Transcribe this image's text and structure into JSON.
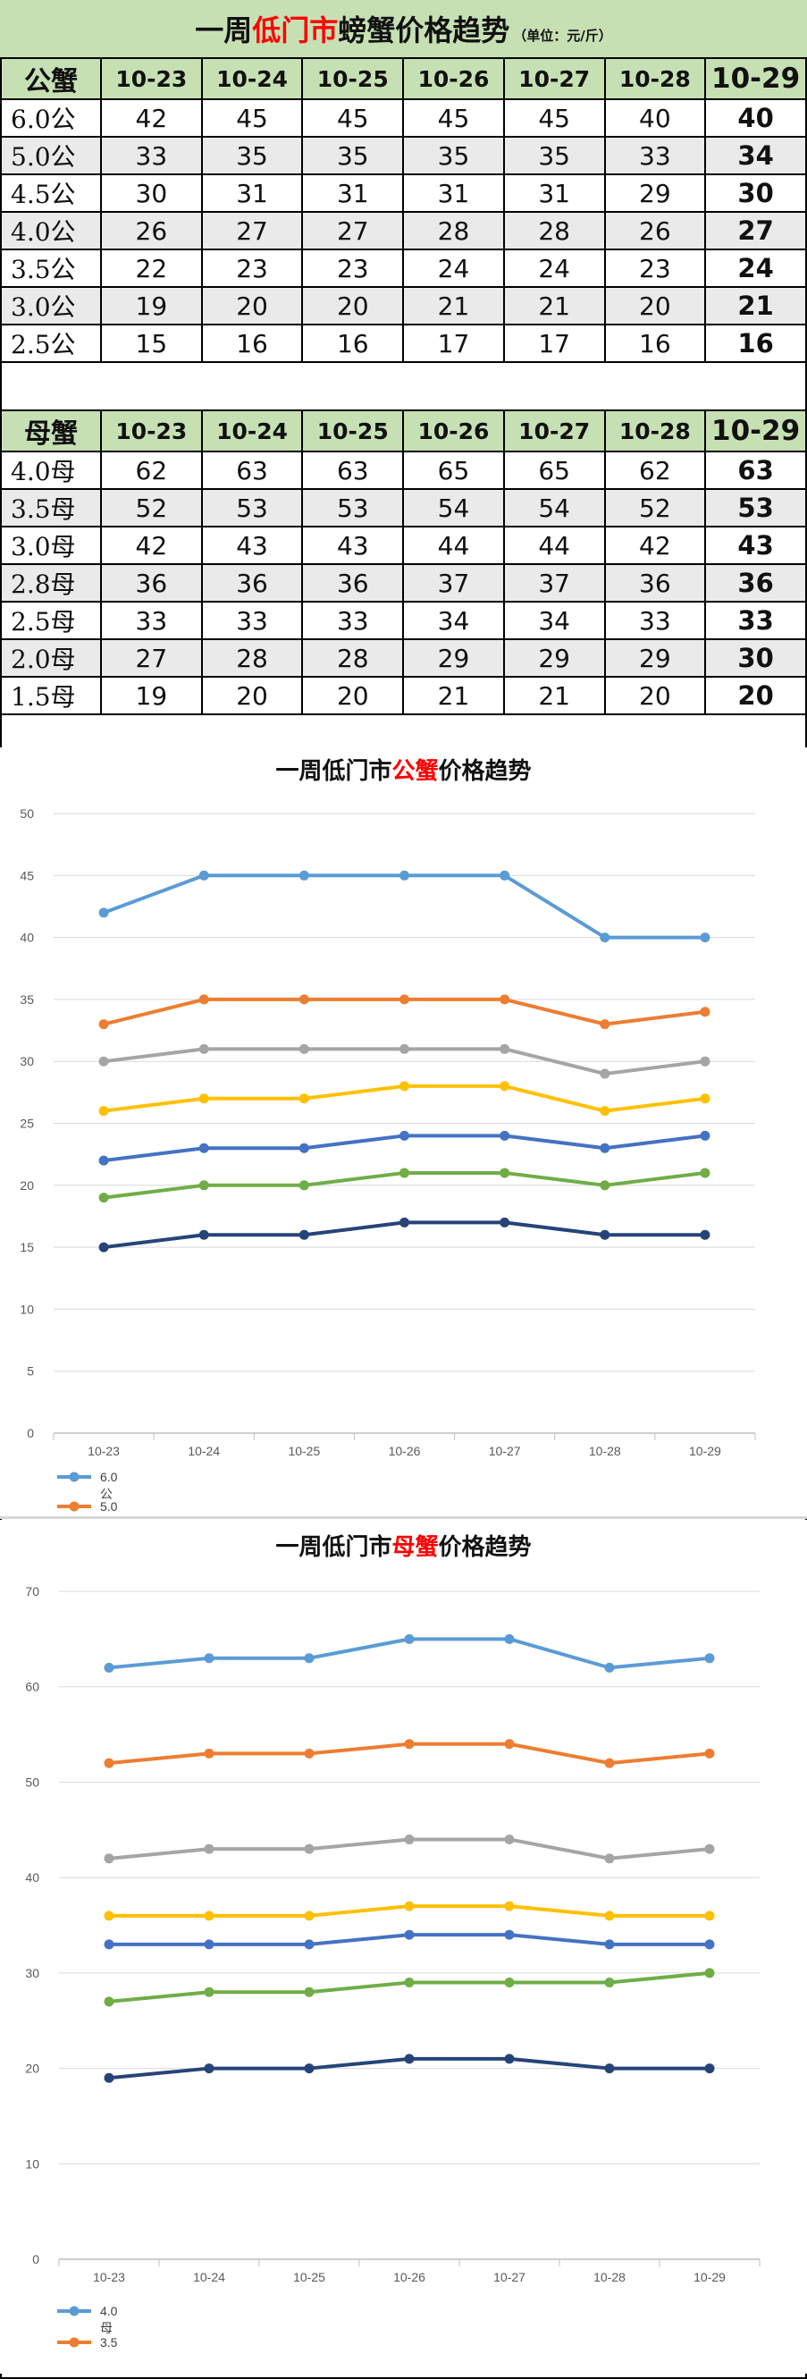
{
  "title": {
    "prefix": "一周",
    "highlight": "低门市",
    "suffix": "螃蟹价格趋势",
    "unit": "（单位：元/斤）"
  },
  "dates": [
    "10-23",
    "10-24",
    "10-25",
    "10-26",
    "10-27",
    "10-28",
    "10-29"
  ],
  "male_table": {
    "header_label": "公蟹",
    "rows": [
      {
        "label": "6.0公",
        "values": [
          42,
          45,
          45,
          45,
          45,
          40,
          40
        ]
      },
      {
        "label": "5.0公",
        "values": [
          33,
          35,
          35,
          35,
          35,
          33,
          34
        ]
      },
      {
        "label": "4.5公",
        "values": [
          30,
          31,
          31,
          31,
          31,
          29,
          30
        ]
      },
      {
        "label": "4.0公",
        "values": [
          26,
          27,
          27,
          28,
          28,
          26,
          27
        ]
      },
      {
        "label": "3.5公",
        "values": [
          22,
          23,
          23,
          24,
          24,
          23,
          24
        ]
      },
      {
        "label": "3.0公",
        "values": [
          19,
          20,
          20,
          21,
          21,
          20,
          21
        ]
      },
      {
        "label": "2.5公",
        "values": [
          15,
          16,
          16,
          17,
          17,
          16,
          16
        ]
      }
    ]
  },
  "female_table": {
    "header_label": "母蟹",
    "rows": [
      {
        "label": "4.0母",
        "values": [
          62,
          63,
          63,
          65,
          65,
          62,
          63
        ]
      },
      {
        "label": "3.5母",
        "values": [
          52,
          53,
          53,
          54,
          54,
          52,
          53
        ]
      },
      {
        "label": "3.0母",
        "values": [
          42,
          43,
          43,
          44,
          44,
          42,
          43
        ]
      },
      {
        "label": "2.8母",
        "values": [
          36,
          36,
          36,
          37,
          37,
          36,
          36
        ]
      },
      {
        "label": "2.5母",
        "values": [
          33,
          33,
          33,
          34,
          34,
          33,
          33
        ]
      },
      {
        "label": "2.0母",
        "values": [
          27,
          28,
          28,
          29,
          29,
          29,
          30
        ]
      },
      {
        "label": "1.5母",
        "values": [
          19,
          20,
          20,
          21,
          21,
          20,
          20
        ]
      }
    ]
  },
  "colors": [
    "#5b9bd5",
    "#ed7d31",
    "#a5a5a5",
    "#ffc000",
    "#4472c4",
    "#70ad47",
    "#264478"
  ],
  "chart_data": [
    {
      "type": "line",
      "title_prefix": "一周低门市",
      "title_highlight": "公蟹",
      "title_suffix": "价格趋势",
      "x": [
        "10-23",
        "10-24",
        "10-25",
        "10-26",
        "10-27",
        "10-28",
        "10-29"
      ],
      "ylim": [
        0,
        50
      ],
      "yticks": [
        0,
        5,
        10,
        15,
        20,
        25,
        30,
        35,
        40,
        45,
        50
      ],
      "grid": true,
      "legend_position": "bottom-left",
      "legend_visible": [
        {
          "line1": "6.0",
          "line2": "公"
        },
        {
          "line1": "5.0",
          "line2": ""
        }
      ],
      "series": [
        {
          "values": [
            42,
            45,
            45,
            45,
            45,
            40,
            40
          ]
        },
        {
          "values": [
            33,
            35,
            35,
            35,
            35,
            33,
            34
          ]
        },
        {
          "values": [
            30,
            31,
            31,
            31,
            31,
            29,
            30
          ]
        },
        {
          "values": [
            26,
            27,
            27,
            28,
            28,
            26,
            27
          ]
        },
        {
          "values": [
            22,
            23,
            23,
            24,
            24,
            23,
            24
          ]
        },
        {
          "values": [
            19,
            20,
            20,
            21,
            21,
            20,
            21
          ]
        },
        {
          "values": [
            15,
            16,
            16,
            17,
            17,
            16,
            16
          ]
        }
      ]
    },
    {
      "type": "line",
      "title_prefix": "一周低门市",
      "title_highlight": "母蟹",
      "title_suffix": "价格趋势",
      "x": [
        "10-23",
        "10-24",
        "10-25",
        "10-26",
        "10-27",
        "10-28",
        "10-29"
      ],
      "ylim": [
        0,
        70
      ],
      "yticks": [
        0,
        10,
        20,
        30,
        40,
        50,
        60,
        70
      ],
      "grid": true,
      "legend_position": "bottom-left",
      "legend_visible": [
        {
          "line1": "4.0",
          "line2": "母"
        },
        {
          "line1": "3.5",
          "line2": ""
        }
      ],
      "series": [
        {
          "values": [
            62,
            63,
            63,
            65,
            65,
            62,
            63
          ]
        },
        {
          "values": [
            52,
            53,
            53,
            54,
            54,
            52,
            53
          ]
        },
        {
          "values": [
            42,
            43,
            43,
            44,
            44,
            42,
            43
          ]
        },
        {
          "values": [
            36,
            36,
            36,
            37,
            37,
            36,
            36
          ]
        },
        {
          "values": [
            33,
            33,
            33,
            34,
            34,
            33,
            33
          ]
        },
        {
          "values": [
            27,
            28,
            28,
            29,
            29,
            29,
            30
          ]
        },
        {
          "values": [
            19,
            20,
            20,
            21,
            21,
            20,
            20
          ]
        }
      ]
    }
  ]
}
